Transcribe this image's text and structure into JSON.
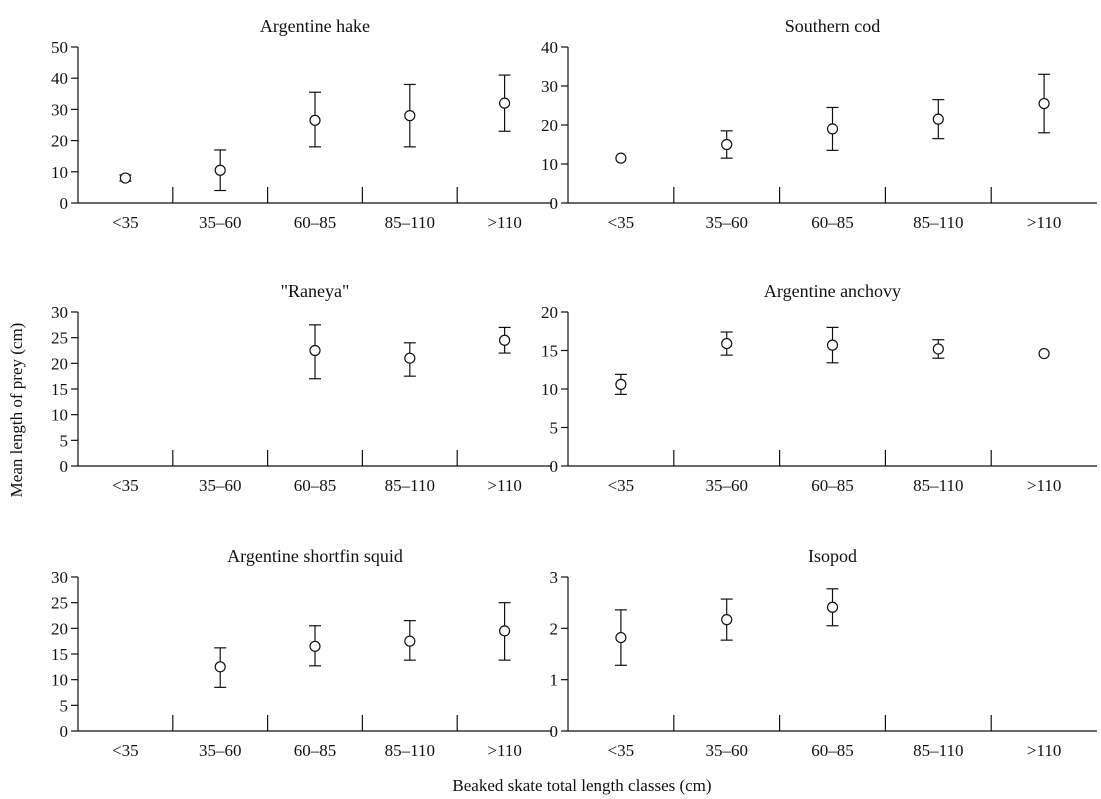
{
  "figure": {
    "ylabel": "Mean length of prey (cm)",
    "xlabel": "Beaked skate total length classes (cm)"
  },
  "chart_data": [
    {
      "type": "scatter",
      "title": "Argentine hake",
      "categories": [
        "<35",
        "35–60",
        "60–85",
        "85–110",
        ">110"
      ],
      "ylim": [
        0,
        50
      ],
      "yticks": [
        "0",
        "10",
        "20",
        "30",
        "40",
        "50"
      ],
      "points": [
        {
          "x": "<35",
          "y": 8,
          "err_low": 7,
          "err_high": 9
        },
        {
          "x": "35–60",
          "y": 10.5,
          "err_low": 4,
          "err_high": 17
        },
        {
          "x": "60–85",
          "y": 26.5,
          "err_low": 18,
          "err_high": 35.5
        },
        {
          "x": "85–110",
          "y": 28,
          "err_low": 18,
          "err_high": 38
        },
        {
          "x": ">110",
          "y": 32,
          "err_low": 23,
          "err_high": 41
        }
      ]
    },
    {
      "type": "scatter",
      "title": "Southern cod",
      "categories": [
        "<35",
        "35–60",
        "60–85",
        "85–110",
        ">110"
      ],
      "ylim": [
        0,
        40
      ],
      "yticks": [
        "0",
        "10",
        "20",
        "30",
        "40"
      ],
      "points": [
        {
          "x": "<35",
          "y": 11.5,
          "err_low": null,
          "err_high": null
        },
        {
          "x": "35–60",
          "y": 15,
          "err_low": 11.5,
          "err_high": 18.5
        },
        {
          "x": "60–85",
          "y": 19,
          "err_low": 13.5,
          "err_high": 24.5
        },
        {
          "x": "85–110",
          "y": 21.5,
          "err_low": 16.5,
          "err_high": 26.5
        },
        {
          "x": ">110",
          "y": 25.5,
          "err_low": 18,
          "err_high": 33
        }
      ]
    },
    {
      "type": "scatter",
      "title": "\"Raneya\"",
      "categories": [
        "<35",
        "35–60",
        "60–85",
        "85–110",
        ">110"
      ],
      "ylim": [
        0,
        30
      ],
      "yticks": [
        "0",
        "5",
        "10",
        "15",
        "20",
        "25",
        "30"
      ],
      "points": [
        {
          "x": "60–85",
          "y": 22.5,
          "err_low": 17,
          "err_high": 27.5
        },
        {
          "x": "85–110",
          "y": 21,
          "err_low": 17.5,
          "err_high": 24
        },
        {
          "x": ">110",
          "y": 24.5,
          "err_low": 22,
          "err_high": 27
        }
      ]
    },
    {
      "type": "scatter",
      "title": "Argentine anchovy",
      "categories": [
        "<35",
        "35–60",
        "60–85",
        "85–110",
        ">110"
      ],
      "ylim": [
        0,
        20
      ],
      "yticks": [
        "0",
        "5",
        "10",
        "15",
        "20"
      ],
      "points": [
        {
          "x": "<35",
          "y": 10.6,
          "err_low": 9.3,
          "err_high": 11.9
        },
        {
          "x": "35–60",
          "y": 15.9,
          "err_low": 14.4,
          "err_high": 17.4
        },
        {
          "x": "60–85",
          "y": 15.7,
          "err_low": 13.4,
          "err_high": 18
        },
        {
          "x": "85–110",
          "y": 15.2,
          "err_low": 14,
          "err_high": 16.4
        },
        {
          "x": ">110",
          "y": 14.6,
          "err_low": null,
          "err_high": null
        }
      ]
    },
    {
      "type": "scatter",
      "title": "Argentine shortfin squid",
      "categories": [
        "<35",
        "35–60",
        "60–85",
        "85–110",
        ">110"
      ],
      "ylim": [
        0,
        30
      ],
      "yticks": [
        "0",
        "5",
        "10",
        "15",
        "20",
        "25",
        "30"
      ],
      "points": [
        {
          "x": "35–60",
          "y": 12.5,
          "err_low": 8.5,
          "err_high": 16.2
        },
        {
          "x": "60–85",
          "y": 16.5,
          "err_low": 12.7,
          "err_high": 20.5
        },
        {
          "x": "85–110",
          "y": 17.5,
          "err_low": 13.8,
          "err_high": 21.5
        },
        {
          "x": ">110",
          "y": 19.5,
          "err_low": 13.8,
          "err_high": 25
        }
      ]
    },
    {
      "type": "scatter",
      "title": "Isopod",
      "categories": [
        "<35",
        "35–60",
        "60–85",
        "85–110",
        ">110"
      ],
      "ylim": [
        0,
        3
      ],
      "yticks": [
        "0",
        "1",
        "2",
        "3"
      ],
      "points": [
        {
          "x": "<35",
          "y": 1.82,
          "err_low": 1.28,
          "err_high": 2.36
        },
        {
          "x": "35–60",
          "y": 2.17,
          "err_low": 1.77,
          "err_high": 2.57
        },
        {
          "x": "60–85",
          "y": 2.41,
          "err_low": 2.05,
          "err_high": 2.77
        }
      ]
    }
  ]
}
